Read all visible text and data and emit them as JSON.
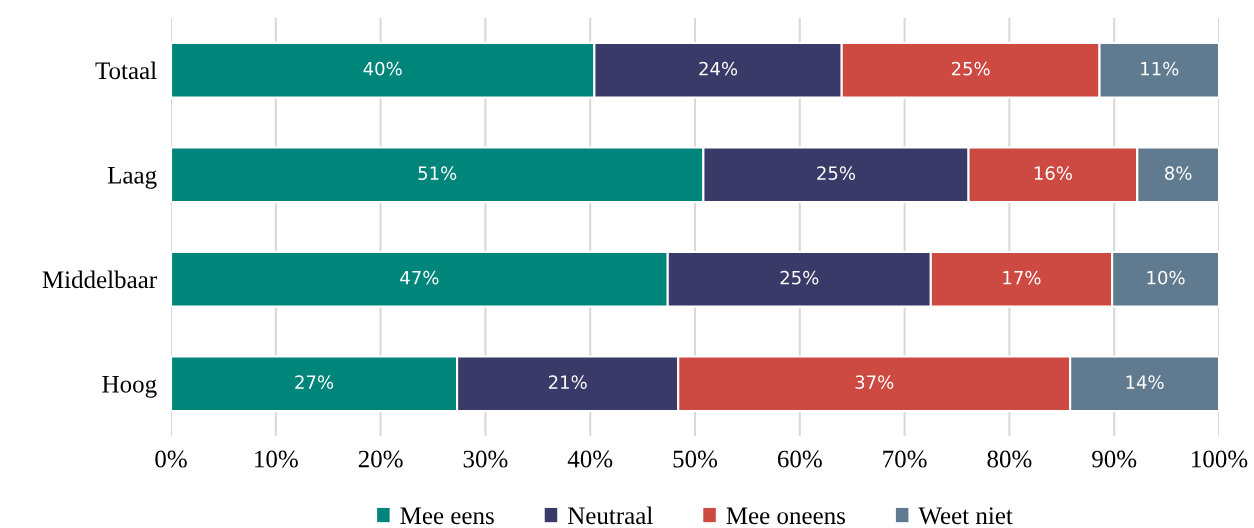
{
  "chart_data": {
    "type": "bar",
    "orientation": "horizontal",
    "stacked": true,
    "categories": [
      "Totaal",
      "Laag",
      "Middelbaar",
      "Hoog"
    ],
    "series": [
      {
        "name": "Mee eens",
        "color": "#00857a",
        "values": [
          40.4,
          50.8,
          47.4,
          27.3
        ],
        "value_labels": [
          "40%",
          "51%",
          "47%",
          "27%"
        ]
      },
      {
        "name": "Neutraal",
        "color": "#3a3a68",
        "values": [
          23.6,
          25.3,
          25.1,
          21.1
        ],
        "value_labels": [
          "24%",
          "25%",
          "25%",
          "21%"
        ]
      },
      {
        "name": "Mee oneens",
        "color": "#cc4a42",
        "values": [
          24.6,
          16.1,
          17.3,
          37.4
        ],
        "value_labels": [
          "25%",
          "16%",
          "17%",
          "37%"
        ]
      },
      {
        "name": "Weet niet",
        "color": "#607b8f",
        "values": [
          11.4,
          7.8,
          10.2,
          14.2
        ],
        "value_labels": [
          "11%",
          "8%",
          "10%",
          "14%"
        ]
      }
    ],
    "xlim": [
      0,
      100
    ],
    "xticks": [
      {
        "value": 0,
        "label": "0%"
      },
      {
        "value": 10,
        "label": "10%"
      },
      {
        "value": 20,
        "label": "20%"
      },
      {
        "value": 30,
        "label": "30%"
      },
      {
        "value": 40,
        "label": "40%"
      },
      {
        "value": 50,
        "label": "50%"
      },
      {
        "value": 60,
        "label": "60%"
      },
      {
        "value": 70,
        "label": "70%"
      },
      {
        "value": 80,
        "label": "80%"
      },
      {
        "value": 90,
        "label": "90%"
      },
      {
        "value": 100,
        "label": "100%"
      }
    ],
    "grid": "x",
    "legend": "bottom"
  }
}
